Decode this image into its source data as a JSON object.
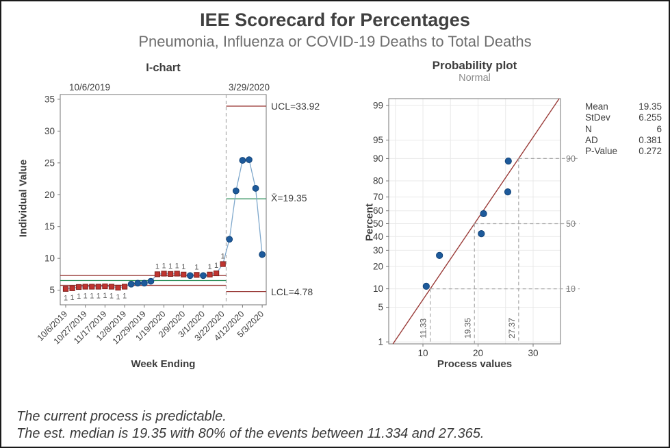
{
  "header": {
    "title": "IEE Scorecard for Percentages",
    "subtitle": "Pneumonia, Influenza or COVID-19 Deaths to Total Deaths"
  },
  "footer": {
    "line1": "The current process is predictable.",
    "line2": "The est. median is 19.35 with 80% of the events between 11.334 and 27.365."
  },
  "colors": {
    "limit_red": "#9a3b38",
    "center_green": "#2f8f5b",
    "point_blue": "#1d5a9b",
    "point_blue_stroke": "#14457a",
    "point_red": "#c03530",
    "point_red_stroke": "#7e1f1c",
    "connector_blue": "#7fa8cc",
    "dash_gray": "#a8a8a8",
    "grid_gray": "#e9e9e9",
    "frame_gray": "#767676",
    "text_dark": "#3d3d3d",
    "text_gray": "#7f7f7f",
    "flag_gray": "#595959"
  },
  "chart_data": [
    {
      "type": "line",
      "subtype": "individuals-control-chart",
      "title": "I-chart",
      "xlabel": "Week Ending",
      "ylabel": "Individual Value",
      "ylim": [
        5,
        35
      ],
      "y_ticks": [
        5,
        10,
        15,
        20,
        25,
        30,
        35
      ],
      "x_tick_labels": [
        "10/6/2019",
        "10/27/2019",
        "11/17/2019",
        "12/8/2019",
        "12/29/2019",
        "1/19/2020",
        "2/9/2020",
        "3/1/2020",
        "3/22/2020",
        "4/12/2020",
        "5/3/2020"
      ],
      "x_tick_index": [
        0,
        3,
        6,
        9,
        12,
        15,
        18,
        21,
        24,
        27,
        30
      ],
      "stage_labels": [
        "10/6/2019",
        "3/29/2020"
      ],
      "stage_boundary_after_index": 24,
      "points": {
        "values": [
          5.2,
          5.3,
          5.5,
          5.55,
          5.55,
          5.55,
          5.6,
          5.55,
          5.4,
          5.55,
          5.95,
          6.1,
          6.1,
          6.4,
          7.5,
          7.6,
          7.55,
          7.6,
          7.45,
          7.3,
          7.4,
          7.3,
          7.45,
          7.65,
          9.1,
          13.0,
          20.6,
          25.4,
          25.5,
          21.0,
          10.6
        ],
        "marker": [
          "r",
          "r",
          "r",
          "r",
          "r",
          "r",
          "r",
          "r",
          "r",
          "r",
          "b",
          "b",
          "b",
          "b",
          "r",
          "r",
          "r",
          "r",
          "r",
          "b",
          "r",
          "b",
          "r",
          "r",
          "r",
          "b",
          "b",
          "b",
          "b",
          "b",
          "b"
        ],
        "flag": [
          1,
          1,
          1,
          1,
          1,
          1,
          1,
          1,
          1,
          1,
          0,
          0,
          0,
          0,
          2,
          2,
          2,
          2,
          2,
          0,
          2,
          0,
          2,
          2,
          2,
          0,
          0,
          0,
          0,
          0,
          0
        ],
        "flag_char": "1"
      },
      "stage1_limits": {
        "ucl": 7.3,
        "cl": 6.52,
        "lcl": 5.76
      },
      "stage2_limits": {
        "ucl": 33.92,
        "cl": 19.35,
        "lcl": 4.78
      },
      "limit_labels": {
        "ucl": "UCL=33.92",
        "mean": "X̄=19.35",
        "lcl": "LCL=4.78"
      }
    },
    {
      "type": "scatter",
      "subtype": "normal-probability-plot",
      "title": "Probability plot",
      "subtitle": "Normal",
      "xlabel": "Process values",
      "ylabel": "Percent",
      "x_ticks": [
        10,
        20,
        30
      ],
      "x_grid_step": 5,
      "y_ticks": [
        1,
        5,
        10,
        20,
        30,
        40,
        50,
        60,
        70,
        80,
        90,
        95,
        99
      ],
      "x": [
        10.6,
        13.0,
        20.6,
        21.0,
        25.4,
        25.5
      ],
      "percent": [
        10.9,
        26.6,
        42.2,
        57.8,
        73.4,
        89.1
      ],
      "fit": {
        "mean": 19.35,
        "stdev": 6.255
      },
      "ref_lines": [
        {
          "p": 10,
          "value": 11.33,
          "value_label": "11.33",
          "p_label": "10"
        },
        {
          "p": 50,
          "value": 19.35,
          "value_label": "19.35",
          "p_label": "50"
        },
        {
          "p": 90,
          "value": 27.37,
          "value_label": "27.37",
          "p_label": "90"
        }
      ],
      "stats": [
        {
          "label": "Mean",
          "value": "19.35"
        },
        {
          "label": "StDev",
          "value": "6.255"
        },
        {
          "label": "N",
          "value": "6"
        },
        {
          "label": "AD",
          "value": "0.381"
        },
        {
          "label": "P-Value",
          "value": "0.272"
        }
      ]
    }
  ]
}
